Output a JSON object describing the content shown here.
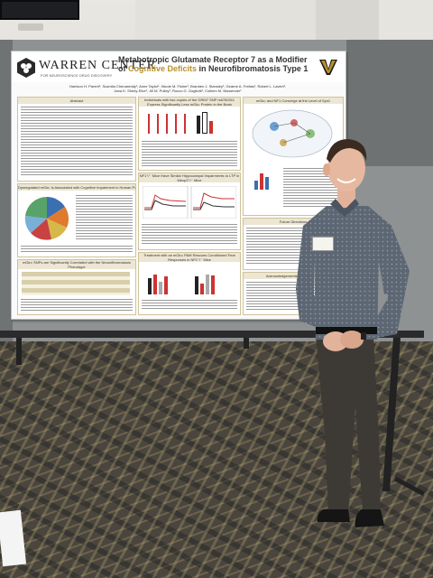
{
  "poster": {
    "org_name": "WARREN CENTER",
    "org_subtitle": "FOR NEUROSCIENCE DRUG DISCOVERY",
    "title_line1": "Metabotropic Glutamate Receptor 7 as a Modifier",
    "title_line2_a": "of ",
    "title_line2_b": "Cognitive Deficits",
    "title_line2_c": " in Neurofibromatosis Type 1",
    "authors_line1": "Harrison H. Parent¹, Susmita Chenareddy¹, Anne Taylor¹, Nicole M. Fisher¹, Branden J. Stansley¹, Gearne A. Freitas¹, Robert L. Lavieri¹,",
    "authors_line2": "Jana K. Shirey-Rice¹, Jill M. Pulley¹, Rocco G. Gogliotti¹, Colleen M. Niswender¹",
    "sections": {
      "abstract": "Abstract",
      "human": "Dysregulated mGlu₇ is Associated with Cognitive Impairment in Human Populations",
      "snps": "mGlu₇ SNPs are Significantly Correlated with the Neurofibromatosis Phenotype",
      "copies": "Individuals with two copies of the GRM7 SNP rs6782011 Express Significantly Less mGlu₇ Protein in the Brain",
      "nf1mice": "NF1⁺/⁻ Mice Have Similar Hippocampal Impairments to LTP in Mecp2⁺/⁻ Mice",
      "treatment": "Treatment with an mGlu₇ PAM Rescues Conditioned Fear Responses in NF1⁺/⁻ Mice",
      "converge": "mGlu₇ and NF1 Converge at the Level of Syn1",
      "future": "Future Directions",
      "ack": "Acknowledgements & Disclosures"
    }
  },
  "colors": {
    "gold": "#b8902a",
    "board": "#8f9293",
    "shirt": "#5d6773",
    "pants": "#3d3a36"
  },
  "icons": [
    "warren-center-logo-icon",
    "vanderbilt-v-logo-icon",
    "name-badge"
  ]
}
